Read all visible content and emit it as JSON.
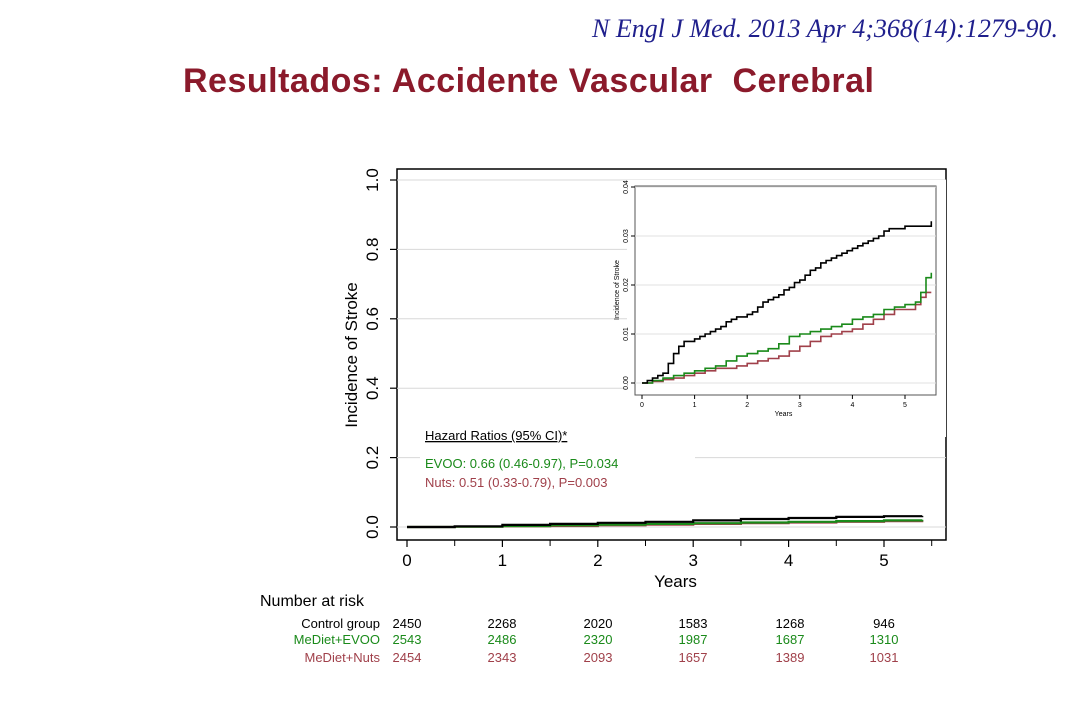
{
  "citation": "N Engl J Med. 2013 Apr 4;368(14):1279-90.",
  "slide_title": "Resultados: Accidente Vascular  Cerebral",
  "colors": {
    "control": "#000000",
    "evoo": "#1a8a1a",
    "nuts": "#a0404a",
    "title": "#8b1a2b",
    "citation": "#1f1f8c"
  },
  "chart_data": [
    {
      "type": "line",
      "title": "",
      "xlabel": "Years",
      "ylabel": "Incidence of Stroke",
      "xlim": [
        0,
        5.5
      ],
      "ylim": [
        0,
        1.0
      ],
      "x_ticks": [
        "0",
        "1",
        "2",
        "3",
        "4",
        "5"
      ],
      "y_ticks": [
        "0.0",
        "0.2",
        "0.4",
        "0.6",
        "0.8",
        "1.0"
      ],
      "grid": true,
      "series": [
        {
          "key": "control",
          "x": [
            0,
            0.5,
            1,
            1.5,
            2,
            2.5,
            3,
            3.5,
            4,
            4.5,
            5,
            5.4
          ],
          "y": [
            0,
            0.002,
            0.006,
            0.009,
            0.012,
            0.015,
            0.019,
            0.023,
            0.026,
            0.029,
            0.031,
            0.032
          ]
        },
        {
          "key": "evoo",
          "x": [
            0,
            0.5,
            1,
            1.5,
            2,
            2.5,
            3,
            3.5,
            4,
            4.5,
            5,
            5.4
          ],
          "y": [
            0,
            0.001,
            0.003,
            0.005,
            0.007,
            0.009,
            0.011,
            0.013,
            0.015,
            0.017,
            0.019,
            0.021
          ]
        },
        {
          "key": "nuts",
          "x": [
            0,
            0.5,
            1,
            1.5,
            2,
            2.5,
            3,
            3.5,
            4,
            4.5,
            5,
            5.4
          ],
          "y": [
            0,
            0.001,
            0.002,
            0.003,
            0.005,
            0.007,
            0.009,
            0.011,
            0.013,
            0.015,
            0.017,
            0.019
          ]
        }
      ],
      "annotations": {
        "hr_title": "Hazard Ratios (95% CI)*",
        "evoo_hr": "EVOO: 0.66 (0.46-0.97), P=0.034",
        "nuts_hr": "Nuts: 0.51 (0.33-0.79), P=0.003"
      }
    },
    {
      "type": "line",
      "title": "",
      "xlabel": "Years",
      "ylabel": "Incidence of Stroke",
      "xlim": [
        0,
        5.5
      ],
      "ylim": [
        0,
        0.04
      ],
      "x_ticks": [
        "0",
        "1",
        "2",
        "3",
        "4",
        "5"
      ],
      "y_ticks": [
        "0.00",
        "0.01",
        "0.02",
        "0.03",
        "0.04"
      ],
      "grid": true,
      "series": [
        {
          "key": "control",
          "x": [
            0,
            0.1,
            0.2,
            0.3,
            0.4,
            0.5,
            0.6,
            0.7,
            0.8,
            0.9,
            1,
            1.1,
            1.2,
            1.3,
            1.4,
            1.5,
            1.6,
            1.7,
            1.8,
            1.9,
            2,
            2.1,
            2.2,
            2.3,
            2.4,
            2.5,
            2.6,
            2.7,
            2.8,
            2.9,
            3,
            3.1,
            3.2,
            3.3,
            3.4,
            3.5,
            3.6,
            3.7,
            3.8,
            3.9,
            4,
            4.1,
            4.2,
            4.3,
            4.4,
            4.5,
            4.6,
            4.7,
            4.8,
            4.9,
            5,
            5.1,
            5.2,
            5.3,
            5.4,
            5.5
          ],
          "y": [
            0,
            0.0005,
            0.001,
            0.0015,
            0.002,
            0.004,
            0.006,
            0.0075,
            0.0085,
            0.0085,
            0.009,
            0.0095,
            0.01,
            0.0105,
            0.011,
            0.0115,
            0.0125,
            0.013,
            0.0135,
            0.0135,
            0.014,
            0.0145,
            0.0155,
            0.0165,
            0.017,
            0.0175,
            0.018,
            0.019,
            0.0195,
            0.0205,
            0.021,
            0.022,
            0.023,
            0.0235,
            0.0245,
            0.025,
            0.0255,
            0.026,
            0.0265,
            0.027,
            0.0275,
            0.028,
            0.0285,
            0.029,
            0.0295,
            0.03,
            0.031,
            0.0315,
            0.0315,
            0.0315,
            0.032,
            0.032,
            0.032,
            0.032,
            0.032,
            0.033
          ]
        },
        {
          "key": "evoo",
          "x": [
            0,
            0.2,
            0.4,
            0.6,
            0.8,
            1,
            1.2,
            1.4,
            1.6,
            1.8,
            2,
            2.2,
            2.4,
            2.6,
            2.8,
            3,
            3.2,
            3.4,
            3.6,
            3.8,
            4,
            4.2,
            4.4,
            4.6,
            4.8,
            5,
            5.2,
            5.3,
            5.4,
            5.5
          ],
          "y": [
            0,
            0.0005,
            0.001,
            0.0015,
            0.002,
            0.0025,
            0.003,
            0.0035,
            0.0045,
            0.0055,
            0.006,
            0.0065,
            0.007,
            0.008,
            0.0095,
            0.01,
            0.0105,
            0.011,
            0.0115,
            0.012,
            0.013,
            0.0135,
            0.014,
            0.015,
            0.0155,
            0.016,
            0.0165,
            0.0185,
            0.0215,
            0.0225
          ]
        },
        {
          "key": "nuts",
          "x": [
            0,
            0.2,
            0.4,
            0.6,
            0.8,
            1,
            1.2,
            1.4,
            1.6,
            1.8,
            2,
            2.2,
            2.4,
            2.6,
            2.8,
            3,
            3.2,
            3.4,
            3.6,
            3.8,
            4,
            4.2,
            4.4,
            4.6,
            4.8,
            5,
            5.2,
            5.3,
            5.4,
            5.5
          ],
          "y": [
            0,
            0.0003,
            0.0007,
            0.001,
            0.0015,
            0.002,
            0.0025,
            0.003,
            0.003,
            0.0035,
            0.004,
            0.0045,
            0.005,
            0.0055,
            0.0065,
            0.0075,
            0.0085,
            0.0095,
            0.01,
            0.0105,
            0.011,
            0.012,
            0.013,
            0.014,
            0.015,
            0.015,
            0.016,
            0.0175,
            0.0185,
            0.0185
          ]
        }
      ]
    }
  ],
  "number_at_risk": {
    "title": "Number at risk",
    "rows": [
      {
        "key": "control",
        "label": "Control group",
        "values": [
          "2450",
          "2268",
          "2020",
          "1583",
          "1268",
          "946"
        ]
      },
      {
        "key": "evoo",
        "label": "MeDiet+EVOO",
        "values": [
          "2543",
          "2486",
          "2320",
          "1987",
          "1687",
          "1310"
        ]
      },
      {
        "key": "nuts",
        "label": "MeDiet+Nuts",
        "values": [
          "2454",
          "2343",
          "2093",
          "1657",
          "1389",
          "1031"
        ]
      }
    ]
  }
}
